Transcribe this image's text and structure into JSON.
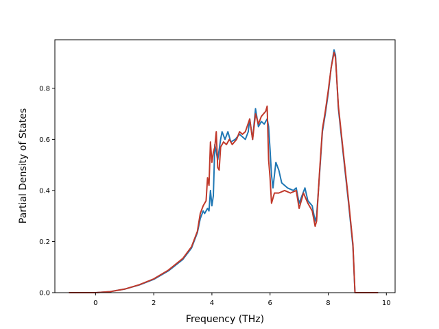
{
  "chart_data": {
    "type": "line",
    "title": "",
    "xlabel": "Frequency (THz)",
    "ylabel": "Partial Density of States",
    "xlim": [
      -1.4,
      10.3
    ],
    "ylim": [
      0.0,
      0.99
    ],
    "xticks": [
      0,
      2,
      4,
      6,
      8,
      10
    ],
    "yticks": [
      0.0,
      0.2,
      0.4,
      0.6,
      0.8
    ],
    "xtick_labels": [
      "0",
      "2",
      "4",
      "6",
      "8",
      "10"
    ],
    "ytick_labels": [
      "0.0",
      "0.2",
      "0.4",
      "0.6",
      "0.8"
    ],
    "grid": false,
    "legend": "none",
    "series": [
      {
        "color": "#1f77b4",
        "points": [
          [
            -0.9,
            0.0
          ],
          [
            0.0,
            0.0
          ],
          [
            0.5,
            0.004
          ],
          [
            1.0,
            0.014
          ],
          [
            1.5,
            0.03
          ],
          [
            2.0,
            0.052
          ],
          [
            2.5,
            0.085
          ],
          [
            3.0,
            0.13
          ],
          [
            3.3,
            0.175
          ],
          [
            3.5,
            0.235
          ],
          [
            3.6,
            0.29
          ],
          [
            3.7,
            0.32
          ],
          [
            3.75,
            0.31
          ],
          [
            3.85,
            0.33
          ],
          [
            3.9,
            0.32
          ],
          [
            3.95,
            0.4
          ],
          [
            4.0,
            0.34
          ],
          [
            4.05,
            0.38
          ],
          [
            4.1,
            0.58
          ],
          [
            4.2,
            0.52
          ],
          [
            4.3,
            0.6
          ],
          [
            4.35,
            0.63
          ],
          [
            4.45,
            0.6
          ],
          [
            4.55,
            0.63
          ],
          [
            4.65,
            0.59
          ],
          [
            4.8,
            0.6
          ],
          [
            4.95,
            0.62
          ],
          [
            5.05,
            0.61
          ],
          [
            5.15,
            0.6
          ],
          [
            5.25,
            0.63
          ],
          [
            5.3,
            0.68
          ],
          [
            5.4,
            0.6
          ],
          [
            5.5,
            0.72
          ],
          [
            5.6,
            0.65
          ],
          [
            5.7,
            0.67
          ],
          [
            5.8,
            0.66
          ],
          [
            5.9,
            0.68
          ],
          [
            5.95,
            0.65
          ],
          [
            6.0,
            0.56
          ],
          [
            6.05,
            0.46
          ],
          [
            6.1,
            0.41
          ],
          [
            6.2,
            0.51
          ],
          [
            6.3,
            0.48
          ],
          [
            6.4,
            0.43
          ],
          [
            6.6,
            0.41
          ],
          [
            6.8,
            0.4
          ],
          [
            6.9,
            0.41
          ],
          [
            7.0,
            0.35
          ],
          [
            7.1,
            0.38
          ],
          [
            7.2,
            0.41
          ],
          [
            7.3,
            0.36
          ],
          [
            7.45,
            0.34
          ],
          [
            7.55,
            0.28
          ],
          [
            7.6,
            0.3
          ],
          [
            7.7,
            0.46
          ],
          [
            7.8,
            0.63
          ],
          [
            7.9,
            0.7
          ],
          [
            8.0,
            0.78
          ],
          [
            8.1,
            0.88
          ],
          [
            8.2,
            0.95
          ],
          [
            8.25,
            0.93
          ],
          [
            8.35,
            0.72
          ],
          [
            8.5,
            0.56
          ],
          [
            8.7,
            0.35
          ],
          [
            8.85,
            0.18
          ],
          [
            8.92,
            0.0
          ],
          [
            9.0,
            0.0
          ],
          [
            9.7,
            0.0
          ]
        ]
      },
      {
        "color": "#c0392b",
        "points": [
          [
            -0.9,
            0.0
          ],
          [
            0.0,
            0.0
          ],
          [
            0.5,
            0.004
          ],
          [
            1.0,
            0.014
          ],
          [
            1.5,
            0.031
          ],
          [
            2.0,
            0.054
          ],
          [
            2.5,
            0.088
          ],
          [
            3.0,
            0.134
          ],
          [
            3.3,
            0.18
          ],
          [
            3.5,
            0.24
          ],
          [
            3.6,
            0.31
          ],
          [
            3.7,
            0.34
          ],
          [
            3.8,
            0.36
          ],
          [
            3.85,
            0.45
          ],
          [
            3.9,
            0.42
          ],
          [
            3.95,
            0.59
          ],
          [
            4.0,
            0.51
          ],
          [
            4.05,
            0.55
          ],
          [
            4.1,
            0.57
          ],
          [
            4.15,
            0.63
          ],
          [
            4.2,
            0.49
          ],
          [
            4.25,
            0.48
          ],
          [
            4.3,
            0.57
          ],
          [
            4.4,
            0.59
          ],
          [
            4.5,
            0.58
          ],
          [
            4.6,
            0.6
          ],
          [
            4.7,
            0.58
          ],
          [
            4.85,
            0.6
          ],
          [
            4.95,
            0.63
          ],
          [
            5.05,
            0.62
          ],
          [
            5.15,
            0.63
          ],
          [
            5.3,
            0.68
          ],
          [
            5.4,
            0.6
          ],
          [
            5.5,
            0.7
          ],
          [
            5.6,
            0.66
          ],
          [
            5.7,
            0.69
          ],
          [
            5.85,
            0.71
          ],
          [
            5.9,
            0.73
          ],
          [
            5.95,
            0.52
          ],
          [
            6.0,
            0.45
          ],
          [
            6.05,
            0.35
          ],
          [
            6.15,
            0.39
          ],
          [
            6.3,
            0.39
          ],
          [
            6.5,
            0.4
          ],
          [
            6.7,
            0.39
          ],
          [
            6.9,
            0.4
          ],
          [
            7.0,
            0.33
          ],
          [
            7.15,
            0.39
          ],
          [
            7.3,
            0.35
          ],
          [
            7.45,
            0.32
          ],
          [
            7.55,
            0.26
          ],
          [
            7.6,
            0.28
          ],
          [
            7.7,
            0.47
          ],
          [
            7.8,
            0.64
          ],
          [
            7.9,
            0.71
          ],
          [
            8.0,
            0.79
          ],
          [
            8.1,
            0.88
          ],
          [
            8.2,
            0.94
          ],
          [
            8.25,
            0.92
          ],
          [
            8.35,
            0.73
          ],
          [
            8.5,
            0.57
          ],
          [
            8.7,
            0.36
          ],
          [
            8.85,
            0.19
          ],
          [
            8.92,
            0.0
          ],
          [
            9.0,
            0.0
          ],
          [
            9.7,
            0.0
          ]
        ]
      }
    ]
  }
}
